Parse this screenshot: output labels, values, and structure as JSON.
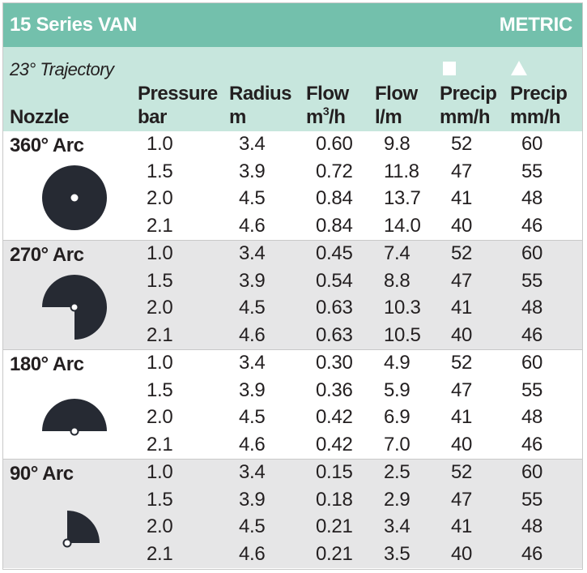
{
  "title": {
    "left": "15 Series VAN",
    "right": "METRIC"
  },
  "trajectory": "23° Trajectory",
  "headers": {
    "nozzle": "Nozzle",
    "pressure": [
      "Pressure",
      "bar"
    ],
    "radius": [
      "Radius",
      "m"
    ],
    "flow_m3h": [
      "Flow",
      "m",
      "3",
      "/h"
    ],
    "flow_lm": [
      "Flow",
      "l/m"
    ],
    "precip_square": [
      "Precip",
      "mm/h"
    ],
    "precip_triangle": [
      "Precip",
      "mm/h"
    ]
  },
  "symbols": {
    "square": "square-spacing",
    "triangle": "triangle-spacing"
  },
  "colors": {
    "title_bar": "#73c0ac",
    "header_band": "#c7e6dd",
    "alt_row": "#e6e6e7",
    "icon": "#262a33"
  },
  "groups": [
    {
      "arc": "360° Arc",
      "icon": "full-circle-arc-icon",
      "rows": [
        [
          "1.0",
          "3.4",
          "0.60",
          "9.8",
          "52",
          "60"
        ],
        [
          "1.5",
          "3.9",
          "0.72",
          "11.8",
          "47",
          "55"
        ],
        [
          "2.0",
          "4.5",
          "0.84",
          "13.7",
          "41",
          "48"
        ],
        [
          "2.1",
          "4.6",
          "0.84",
          "14.0",
          "40",
          "46"
        ]
      ]
    },
    {
      "arc": "270° Arc",
      "icon": "three-quarter-arc-icon",
      "rows": [
        [
          "1.0",
          "3.4",
          "0.45",
          "7.4",
          "52",
          "60"
        ],
        [
          "1.5",
          "3.9",
          "0.54",
          "8.8",
          "47",
          "55"
        ],
        [
          "2.0",
          "4.5",
          "0.63",
          "10.3",
          "41",
          "48"
        ],
        [
          "2.1",
          "4.6",
          "0.63",
          "10.5",
          "40",
          "46"
        ]
      ]
    },
    {
      "arc": "180° Arc",
      "icon": "half-circle-arc-icon",
      "rows": [
        [
          "1.0",
          "3.4",
          "0.30",
          "4.9",
          "52",
          "60"
        ],
        [
          "1.5",
          "3.9",
          "0.36",
          "5.9",
          "47",
          "55"
        ],
        [
          "2.0",
          "4.5",
          "0.42",
          "6.9",
          "41",
          "48"
        ],
        [
          "2.1",
          "4.6",
          "0.42",
          "7.0",
          "40",
          "46"
        ]
      ]
    },
    {
      "arc": "90° Arc",
      "icon": "quarter-arc-icon",
      "rows": [
        [
          "1.0",
          "3.4",
          "0.15",
          "2.5",
          "52",
          "60"
        ],
        [
          "1.5",
          "3.9",
          "0.18",
          "2.9",
          "47",
          "55"
        ],
        [
          "2.0",
          "4.5",
          "0.21",
          "3.4",
          "41",
          "48"
        ],
        [
          "2.1",
          "4.6",
          "0.21",
          "3.5",
          "40",
          "46"
        ]
      ]
    }
  ]
}
